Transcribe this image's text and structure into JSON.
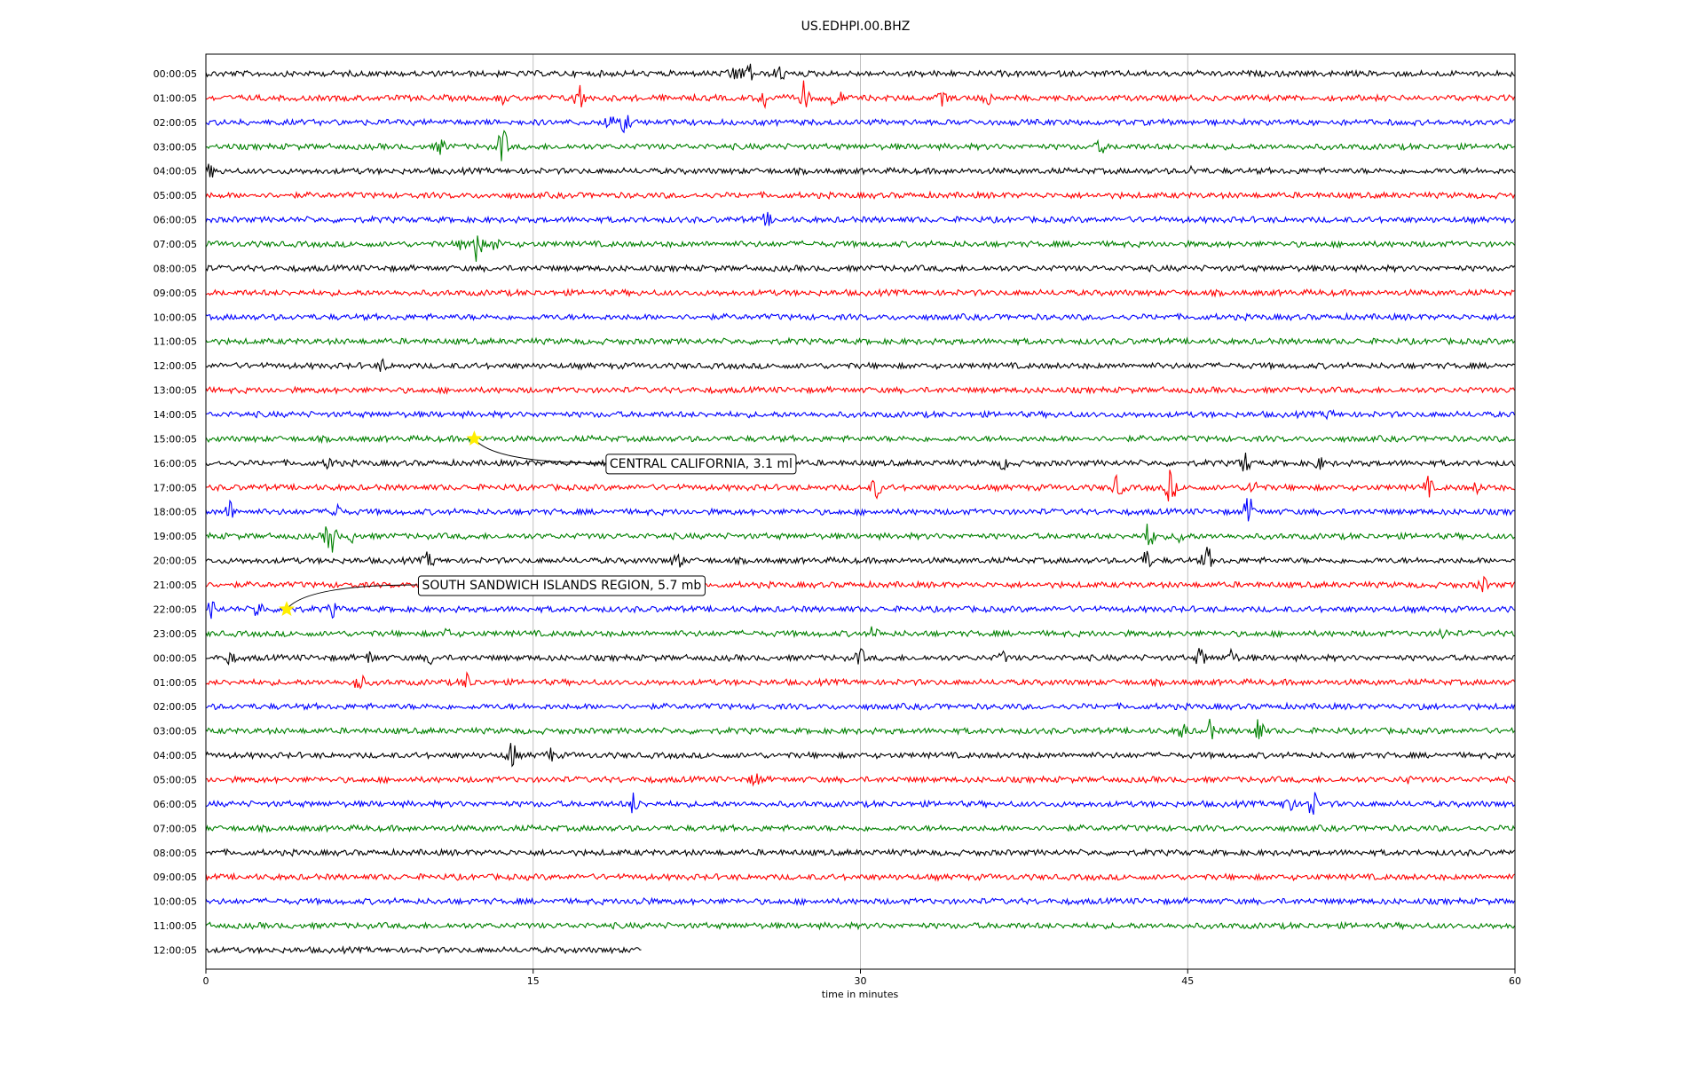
{
  "chart_data": {
    "type": "line",
    "title": "US.EDHPI.00.BHZ",
    "xlabel": "time in minutes",
    "ylabel": "",
    "xlim": [
      0,
      60
    ],
    "xticks": [
      "0",
      "15",
      "30",
      "45",
      "60"
    ],
    "grid": "vertical lines at 15-minute ticks",
    "colors": [
      "#000000",
      "#ff0000",
      "#0000ff",
      "#008000"
    ],
    "last_line_end_minutes": 20,
    "row_labels": [
      "00:00:05",
      "01:00:05",
      "02:00:05",
      "03:00:05",
      "04:00:05",
      "05:00:05",
      "06:00:05",
      "07:00:05",
      "08:00:05",
      "09:00:05",
      "10:00:05",
      "11:00:05",
      "12:00:05",
      "13:00:05",
      "14:00:05",
      "15:00:05",
      "16:00:05",
      "17:00:05",
      "18:00:05",
      "19:00:05",
      "20:00:05",
      "21:00:05",
      "22:00:05",
      "23:00:05",
      "00:00:05",
      "01:00:05",
      "02:00:05",
      "03:00:05",
      "04:00:05",
      "05:00:05",
      "06:00:05",
      "07:00:05",
      "08:00:05",
      "09:00:05",
      "10:00:05",
      "11:00:05",
      "12:00:05"
    ],
    "bursts": [
      {
        "row": 0,
        "min": 24.2,
        "amp": 12
      },
      {
        "row": 0,
        "min": 24.8,
        "amp": 18
      },
      {
        "row": 0,
        "min": 26.3,
        "amp": 10
      },
      {
        "row": 1,
        "min": 13.6,
        "amp": 6
      },
      {
        "row": 1,
        "min": 17.1,
        "amp": 18
      },
      {
        "row": 1,
        "min": 25.6,
        "amp": 12
      },
      {
        "row": 1,
        "min": 27.4,
        "amp": 18
      },
      {
        "row": 1,
        "min": 28.9,
        "amp": 14
      },
      {
        "row": 1,
        "min": 33.8,
        "amp": 9
      },
      {
        "row": 1,
        "min": 35.8,
        "amp": 8
      },
      {
        "row": 2,
        "min": 18.5,
        "amp": 10
      },
      {
        "row": 2,
        "min": 19.2,
        "amp": 12
      },
      {
        "row": 3,
        "min": 10.8,
        "amp": 9
      },
      {
        "row": 3,
        "min": 13.6,
        "amp": 22
      },
      {
        "row": 3,
        "min": 41.0,
        "amp": 8
      },
      {
        "row": 4,
        "min": 0.2,
        "amp": 8
      },
      {
        "row": 4,
        "min": 45.2,
        "amp": 5
      },
      {
        "row": 6,
        "min": 25.7,
        "amp": 8
      },
      {
        "row": 7,
        "min": 11.8,
        "amp": 8
      },
      {
        "row": 7,
        "min": 12.4,
        "amp": 20
      },
      {
        "row": 7,
        "min": 13.3,
        "amp": 8
      },
      {
        "row": 12,
        "min": 8.1,
        "amp": 8
      },
      {
        "row": 14,
        "min": 51.5,
        "amp": 5
      },
      {
        "row": 16,
        "min": 5.7,
        "amp": 8
      },
      {
        "row": 16,
        "min": 36.6,
        "amp": 8
      },
      {
        "row": 16,
        "min": 47.6,
        "amp": 14
      },
      {
        "row": 16,
        "min": 51.0,
        "amp": 8
      },
      {
        "row": 17,
        "min": 30.7,
        "amp": 12
      },
      {
        "row": 17,
        "min": 41.8,
        "amp": 14
      },
      {
        "row": 17,
        "min": 44.2,
        "amp": 20
      },
      {
        "row": 17,
        "min": 48.0,
        "amp": 10
      },
      {
        "row": 17,
        "min": 56.0,
        "amp": 12
      },
      {
        "row": 17,
        "min": 58.3,
        "amp": 7
      },
      {
        "row": 18,
        "min": 1.1,
        "amp": 12
      },
      {
        "row": 18,
        "min": 5.9,
        "amp": 14
      },
      {
        "row": 18,
        "min": 47.8,
        "amp": 18
      },
      {
        "row": 19,
        "min": 5.7,
        "amp": 24
      },
      {
        "row": 19,
        "min": 6.8,
        "amp": 8
      },
      {
        "row": 19,
        "min": 43.2,
        "amp": 16
      },
      {
        "row": 19,
        "min": 44.7,
        "amp": 8
      },
      {
        "row": 20,
        "min": 10.2,
        "amp": 10
      },
      {
        "row": 20,
        "min": 21.6,
        "amp": 12
      },
      {
        "row": 20,
        "min": 43.1,
        "amp": 12
      },
      {
        "row": 20,
        "min": 45.9,
        "amp": 16
      },
      {
        "row": 21,
        "min": 58.5,
        "amp": 10
      },
      {
        "row": 22,
        "min": 0.3,
        "amp": 12
      },
      {
        "row": 22,
        "min": 2.4,
        "amp": 12
      },
      {
        "row": 22,
        "min": 5.8,
        "amp": 8
      },
      {
        "row": 23,
        "min": 11.0,
        "amp": 5
      },
      {
        "row": 23,
        "min": 30.6,
        "amp": 9
      },
      {
        "row": 23,
        "min": 56.7,
        "amp": 7
      },
      {
        "row": 24,
        "min": 1.1,
        "amp": 8
      },
      {
        "row": 24,
        "min": 7.5,
        "amp": 7
      },
      {
        "row": 24,
        "min": 10.3,
        "amp": 7
      },
      {
        "row": 24,
        "min": 30.0,
        "amp": 10
      },
      {
        "row": 24,
        "min": 36.5,
        "amp": 7
      },
      {
        "row": 24,
        "min": 45.6,
        "amp": 12
      },
      {
        "row": 24,
        "min": 47.0,
        "amp": 10
      },
      {
        "row": 25,
        "min": 7.0,
        "amp": 12
      },
      {
        "row": 25,
        "min": 12.0,
        "amp": 11
      },
      {
        "row": 26,
        "min": 55.6,
        "amp": 6
      },
      {
        "row": 27,
        "min": 44.8,
        "amp": 10
      },
      {
        "row": 27,
        "min": 46.0,
        "amp": 12
      },
      {
        "row": 27,
        "min": 48.2,
        "amp": 18
      },
      {
        "row": 28,
        "min": 14.0,
        "amp": 18
      },
      {
        "row": 28,
        "min": 15.8,
        "amp": 8
      },
      {
        "row": 29,
        "min": 25.2,
        "amp": 9
      },
      {
        "row": 29,
        "min": 55.0,
        "amp": 5
      },
      {
        "row": 30,
        "min": 19.6,
        "amp": 12
      },
      {
        "row": 30,
        "min": 49.6,
        "amp": 14
      },
      {
        "row": 30,
        "min": 50.7,
        "amp": 20
      },
      {
        "row": 34,
        "min": 19.9,
        "amp": 6
      }
    ],
    "annotations": [
      {
        "text": "CENTRAL CALIFORNIA, 3.1 ml",
        "row": 15,
        "min": 12.3,
        "label_row": 16,
        "label_min": 18.3
      },
      {
        "text": "SOUTH SANDWICH ISLANDS REGION, 5.7 mb",
        "row": 22,
        "min": 3.7,
        "label_row": 21,
        "label_min": 9.7
      }
    ]
  }
}
